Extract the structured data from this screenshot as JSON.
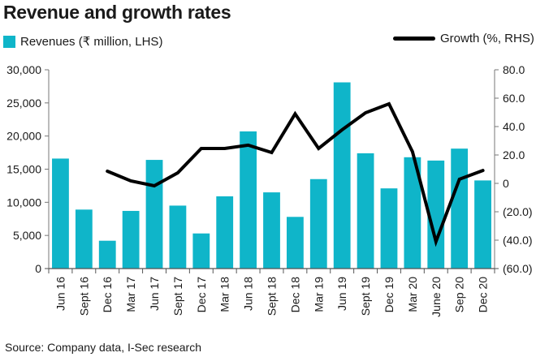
{
  "chart_data": {
    "type": "bar+line",
    "title": "Revenue and growth rates",
    "categories": [
      "Jun 16",
      "Sept 16",
      "Dec 16",
      "Mar 17",
      "Jun 17",
      "Sept 17",
      "Dec 17",
      "Mar 18",
      "Jun 18",
      "Sept 18",
      "Dec 18",
      "Mar 19",
      "Jun 19",
      "Sept 19",
      "Dec 19",
      "Mar 20",
      "June 20",
      "Sep 20",
      "Dec 20"
    ],
    "series": [
      {
        "name": "Revenues (₹ million, LHS)",
        "type": "bar",
        "axis": "left",
        "color": "#0fb5c9",
        "values": [
          16600,
          8900,
          4200,
          8700,
          16400,
          9500,
          5300,
          10900,
          20700,
          11500,
          7800,
          13500,
          28100,
          17400,
          12100,
          16800,
          16300,
          18100,
          13300
        ]
      },
      {
        "name": "Growth (%, RHS)",
        "type": "line",
        "axis": "right",
        "color": "#000000",
        "values": [
          null,
          null,
          8.6,
          1.7,
          -1.7,
          7.4,
          24.6,
          24.6,
          26.9,
          21.7,
          49.0,
          24.6,
          37.7,
          49.7,
          56.0,
          22.3,
          -41.0,
          2.9,
          9.1
        ]
      }
    ],
    "left_axis": {
      "ylim": [
        0,
        30000
      ],
      "ticks": [
        0,
        5000,
        10000,
        15000,
        20000,
        25000,
        30000
      ],
      "tick_labels": [
        "0",
        "5,000",
        "10,000",
        "15,000",
        "20,000",
        "25,000",
        "30,000"
      ]
    },
    "right_axis": {
      "ylim": [
        -60,
        80
      ],
      "ticks": [
        -60,
        -40,
        -20,
        0,
        20,
        40,
        60,
        80
      ],
      "tick_labels": [
        "(60.0)",
        "(40.0)",
        "(20.0)",
        "0",
        "20.0",
        "40.0",
        "60.0",
        "80.0"
      ]
    },
    "legend": [
      {
        "label": "Revenues (₹ million, LHS)",
        "placement": "top-left"
      },
      {
        "label": "Growth (%, RHS)",
        "placement": "top-right"
      }
    ],
    "grid": false,
    "source": "Source: Company data, I-Sec research"
  }
}
